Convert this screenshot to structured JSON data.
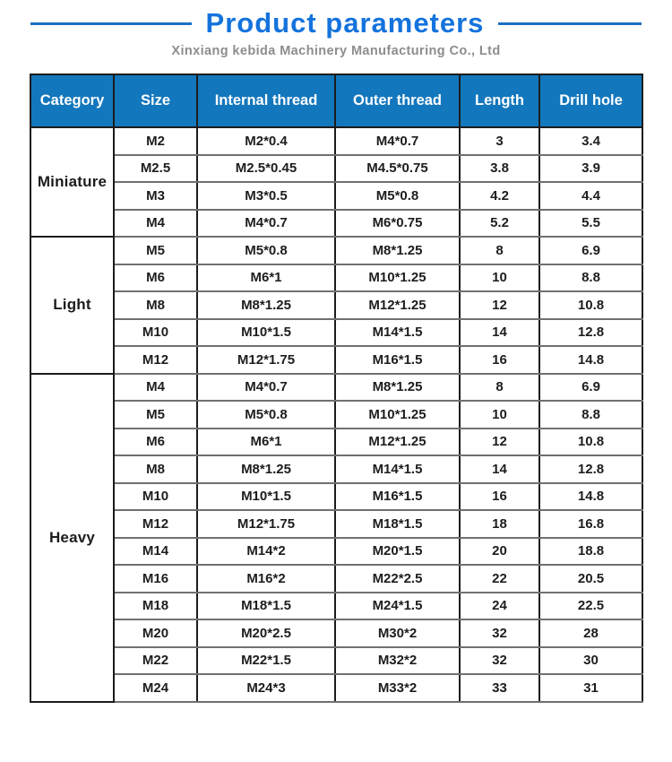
{
  "page": {
    "title": "Product parameters",
    "subtitle": "Xinxiang kebida Machinery Manufacturing Co., Ltd"
  },
  "colors": {
    "title_blue": "#1473dd",
    "line_blue": "#1c6fc4",
    "header_bg": "#1377bd",
    "header_text": "#ffffff",
    "subtitle_gray": "#8d8d8d"
  },
  "table": {
    "columns": [
      "Category",
      "Size",
      "Internal thread",
      "Outer thread",
      "Length",
      "Drill hole"
    ],
    "groups": [
      {
        "category": "Miniature",
        "rows": [
          [
            "M2",
            "M2*0.4",
            "M4*0.7",
            "3",
            "3.4"
          ],
          [
            "M2.5",
            "M2.5*0.45",
            "M4.5*0.75",
            "3.8",
            "3.9"
          ],
          [
            "M3",
            "M3*0.5",
            "M5*0.8",
            "4.2",
            "4.4"
          ],
          [
            "M4",
            "M4*0.7",
            "M6*0.75",
            "5.2",
            "5.5"
          ]
        ]
      },
      {
        "category": "Light",
        "rows": [
          [
            "M5",
            "M5*0.8",
            "M8*1.25",
            "8",
            "6.9"
          ],
          [
            "M6",
            "M6*1",
            "M10*1.25",
            "10",
            "8.8"
          ],
          [
            "M8",
            "M8*1.25",
            "M12*1.25",
            "12",
            "10.8"
          ],
          [
            "M10",
            "M10*1.5",
            "M14*1.5",
            "14",
            "12.8"
          ],
          [
            "M12",
            "M12*1.75",
            "M16*1.5",
            "16",
            "14.8"
          ]
        ]
      },
      {
        "category": "Heavy",
        "rows": [
          [
            "M4",
            "M4*0.7",
            "M8*1.25",
            "8",
            "6.9"
          ],
          [
            "M5",
            "M5*0.8",
            "M10*1.25",
            "10",
            "8.8"
          ],
          [
            "M6",
            "M6*1",
            "M12*1.25",
            "12",
            "10.8"
          ],
          [
            "M8",
            "M8*1.25",
            "M14*1.5",
            "14",
            "12.8"
          ],
          [
            "M10",
            "M10*1.5",
            "M16*1.5",
            "16",
            "14.8"
          ],
          [
            "M12",
            "M12*1.75",
            "M18*1.5",
            "18",
            "16.8"
          ],
          [
            "M14",
            "M14*2",
            "M20*1.5",
            "20",
            "18.8"
          ],
          [
            "M16",
            "M16*2",
            "M22*2.5",
            "22",
            "20.5"
          ],
          [
            "M18",
            "M18*1.5",
            "M24*1.5",
            "24",
            "22.5"
          ],
          [
            "M20",
            "M20*2.5",
            "M30*2",
            "32",
            "28"
          ],
          [
            "M22",
            "M22*1.5",
            "M32*2",
            "32",
            "30"
          ],
          [
            "M24",
            "M24*3",
            "M33*2",
            "33",
            "31"
          ]
        ]
      }
    ]
  }
}
